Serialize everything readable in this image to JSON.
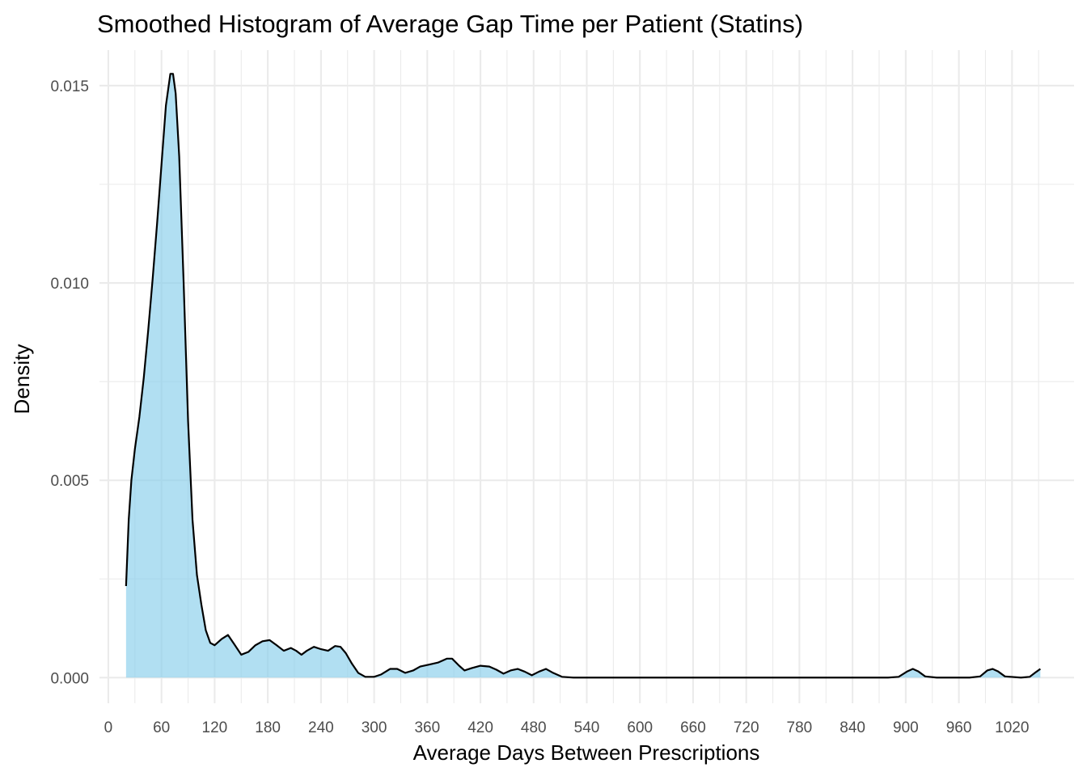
{
  "chart_data": {
    "type": "area",
    "title": "Smoothed Histogram of Average Gap Time per Patient (Statins)",
    "xlabel": "Average Days Between Prescriptions",
    "ylabel": "Density",
    "xlim": [
      -10,
      1090
    ],
    "ylim": [
      -0.00065,
      0.0159
    ],
    "x_ticks": [
      0,
      60,
      120,
      180,
      240,
      300,
      360,
      420,
      480,
      540,
      600,
      660,
      720,
      780,
      840,
      900,
      960,
      1020
    ],
    "x_tick_labels": [
      "0",
      "60",
      "120",
      "180",
      "240",
      "300",
      "360",
      "420",
      "480",
      "540",
      "600",
      "660",
      "720",
      "780",
      "840",
      "900",
      "960",
      "1020"
    ],
    "x_minor_ticks": [
      30,
      90,
      150,
      210,
      270,
      330,
      390,
      450,
      510,
      570,
      630,
      690,
      750,
      810,
      870,
      930,
      990,
      1050
    ],
    "y_ticks": [
      0,
      0.005,
      0.01,
      0.015
    ],
    "y_tick_labels": [
      "0.000",
      "0.005",
      "0.010",
      "0.015"
    ],
    "y_minor_ticks": [
      0.0025,
      0.0075,
      0.0125
    ],
    "grid": true,
    "fill_color": "#87ceeb",
    "fill_opacity": 0.65,
    "line_color": "#000000",
    "points": [
      [
        20,
        0.00232
      ],
      [
        23,
        0.004
      ],
      [
        26,
        0.005
      ],
      [
        30,
        0.0058
      ],
      [
        35,
        0.0066
      ],
      [
        40,
        0.0076
      ],
      [
        45,
        0.0088
      ],
      [
        50,
        0.0101
      ],
      [
        55,
        0.0115
      ],
      [
        60,
        0.013
      ],
      [
        65,
        0.0145
      ],
      [
        70,
        0.0153
      ],
      [
        73,
        0.0153
      ],
      [
        76,
        0.0148
      ],
      [
        80,
        0.0132
      ],
      [
        85,
        0.01
      ],
      [
        90,
        0.0065
      ],
      [
        95,
        0.004
      ],
      [
        100,
        0.0026
      ],
      [
        105,
        0.00185
      ],
      [
        110,
        0.0012
      ],
      [
        115,
        0.00088
      ],
      [
        120,
        0.00082
      ],
      [
        128,
        0.00098
      ],
      [
        135,
        0.00108
      ],
      [
        142,
        0.00085
      ],
      [
        150,
        0.00058
      ],
      [
        158,
        0.00065
      ],
      [
        166,
        0.00082
      ],
      [
        174,
        0.00092
      ],
      [
        182,
        0.00095
      ],
      [
        190,
        0.00082
      ],
      [
        198,
        0.00068
      ],
      [
        206,
        0.00075
      ],
      [
        212,
        0.00068
      ],
      [
        218,
        0.00058
      ],
      [
        224,
        0.00068
      ],
      [
        232,
        0.00078
      ],
      [
        240,
        0.00072
      ],
      [
        248,
        0.00068
      ],
      [
        256,
        0.0008
      ],
      [
        262,
        0.00078
      ],
      [
        268,
        0.00062
      ],
      [
        275,
        0.00035
      ],
      [
        282,
        0.00012
      ],
      [
        290,
        2e-05
      ],
      [
        300,
        2e-05
      ],
      [
        308,
        8e-05
      ],
      [
        318,
        0.00022
      ],
      [
        326,
        0.00022
      ],
      [
        335,
        0.00012
      ],
      [
        344,
        0.00018
      ],
      [
        352,
        0.00028
      ],
      [
        362,
        0.00033
      ],
      [
        372,
        0.00038
      ],
      [
        382,
        0.00048
      ],
      [
        388,
        0.00048
      ],
      [
        396,
        0.0003
      ],
      [
        402,
        0.00018
      ],
      [
        410,
        0.00024
      ],
      [
        420,
        0.0003
      ],
      [
        430,
        0.00028
      ],
      [
        438,
        0.0002
      ],
      [
        446,
        0.0001
      ],
      [
        454,
        0.00018
      ],
      [
        462,
        0.00022
      ],
      [
        470,
        0.00015
      ],
      [
        478,
        6e-05
      ],
      [
        486,
        0.00015
      ],
      [
        494,
        0.00022
      ],
      [
        502,
        0.00012
      ],
      [
        512,
        2e-05
      ],
      [
        525,
        0.0
      ],
      [
        880,
        0.0
      ],
      [
        892,
        2e-05
      ],
      [
        902,
        0.00016
      ],
      [
        908,
        0.00022
      ],
      [
        914,
        0.00016
      ],
      [
        922,
        3e-05
      ],
      [
        935,
        0.0
      ],
      [
        972,
        0.0
      ],
      [
        984,
        3e-05
      ],
      [
        992,
        0.00018
      ],
      [
        998,
        0.00022
      ],
      [
        1004,
        0.00016
      ],
      [
        1012,
        3e-05
      ],
      [
        1030,
        0.0
      ],
      [
        1040,
        2e-05
      ],
      [
        1047,
        0.00014
      ],
      [
        1052,
        0.00022
      ]
    ]
  }
}
